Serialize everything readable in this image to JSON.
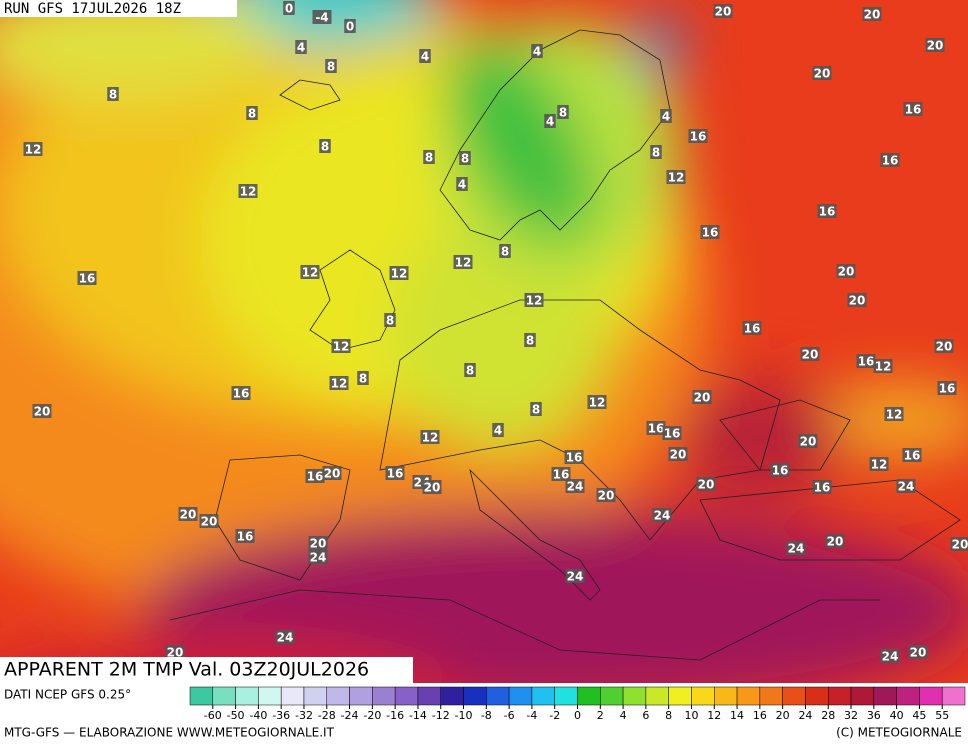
{
  "header": {
    "title": "RUN GFS 17JUL2026 18Z"
  },
  "map": {
    "title": "APPARENT 2M TMP Val. 03Z20JUL2026",
    "labels": [
      0,
      -4,
      0,
      4,
      4,
      4,
      8,
      8,
      8,
      8,
      4,
      4,
      16,
      12,
      8,
      8,
      8,
      8,
      12,
      4,
      12,
      20,
      20,
      20,
      20,
      16,
      16,
      16,
      16,
      16,
      12,
      12,
      12,
      8,
      12,
      20,
      20,
      8,
      16,
      12,
      8,
      20,
      20,
      16,
      12,
      12,
      8,
      8,
      16,
      16,
      20,
      8,
      12,
      20,
      12,
      4,
      12,
      16,
      16,
      20,
      20,
      16,
      16,
      12,
      16,
      16,
      16,
      20,
      24,
      20,
      16,
      24,
      20,
      16,
      24,
      20,
      20,
      20,
      24,
      16,
      20,
      24,
      20,
      24,
      20,
      24,
      24,
      20,
      24,
      20
    ]
  },
  "legend": {
    "source": "DATI NCEP GFS 0.25°",
    "ticks": [
      -60,
      -50,
      -40,
      -36,
      -32,
      -28,
      -24,
      -20,
      -16,
      -14,
      -12,
      -10,
      -8,
      -6,
      -4,
      -2,
      0,
      2,
      4,
      6,
      8,
      10,
      12,
      14,
      16,
      20,
      24,
      28,
      32,
      36,
      40,
      45,
      55
    ],
    "colors": [
      "#3cc8a0",
      "#78e0c0",
      "#a8f0e0",
      "#d0f8f0",
      "#e8e8f8",
      "#d0d0f0",
      "#c0b8e8",
      "#b0a0e0",
      "#9c80d0",
      "#8860c8",
      "#6840b0",
      "#3020a0",
      "#1830c0",
      "#2060e0",
      "#2090f0",
      "#20c0f0",
      "#20e0e0",
      "#20c020",
      "#50d030",
      "#90e030",
      "#c8e828",
      "#f0f020",
      "#f8d818",
      "#f8b818",
      "#f89818",
      "#f07818",
      "#e85018",
      "#d83018",
      "#c82028",
      "#b01838",
      "#a01858",
      "#c02080",
      "#e030b0",
      "#f070d0"
    ]
  },
  "footer": {
    "left": "MTG-GFS — ELABORAZIONE WWW.METEOGIORNALE.IT",
    "right": "(C) METEOGIORNALE"
  }
}
